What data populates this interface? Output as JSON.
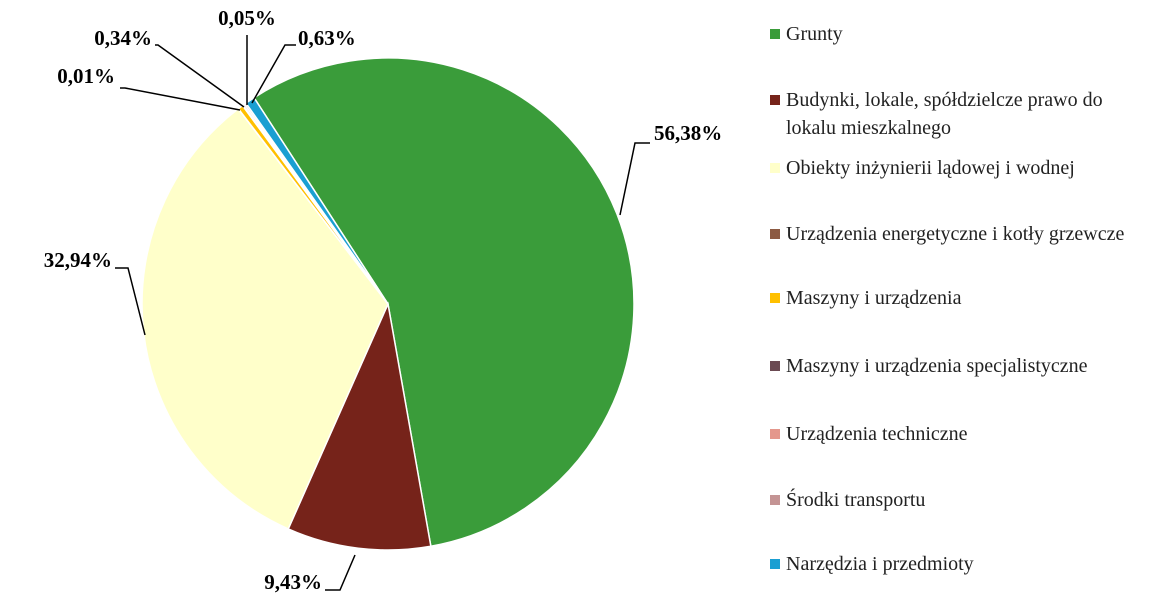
{
  "chart_data": {
    "type": "pie",
    "categories": [
      "Grunty",
      "Budynki, lokale, spółdzielcze prawo do lokalu mieszkalnego",
      "Obiekty inżynierii lądowej i wodnej",
      "Urządzenia energetyczne i kotły grzewcze",
      "Maszyny i urządzenia",
      "Maszyny i urządzenia specjalistyczne",
      "Urządzenia techniczne",
      "Środki transportu",
      "Narzędzia i przedmioty"
    ],
    "values": [
      56.38,
      9.43,
      32.94,
      0.01,
      0.34,
      0.05,
      0.11,
      0.11,
      0.63
    ],
    "value_labels": [
      "56,38%",
      "9,43%",
      "32,94%",
      "0,01%",
      "0,34%",
      "0,05%",
      null,
      null,
      "0,63%"
    ],
    "colors": [
      "#3a9c3a",
      "#76231a",
      "#ffffca",
      "#8c5a42",
      "#ffc000",
      "#6b4a52",
      "#e4978c",
      "#c49494",
      "#1a9fd2"
    ]
  }
}
